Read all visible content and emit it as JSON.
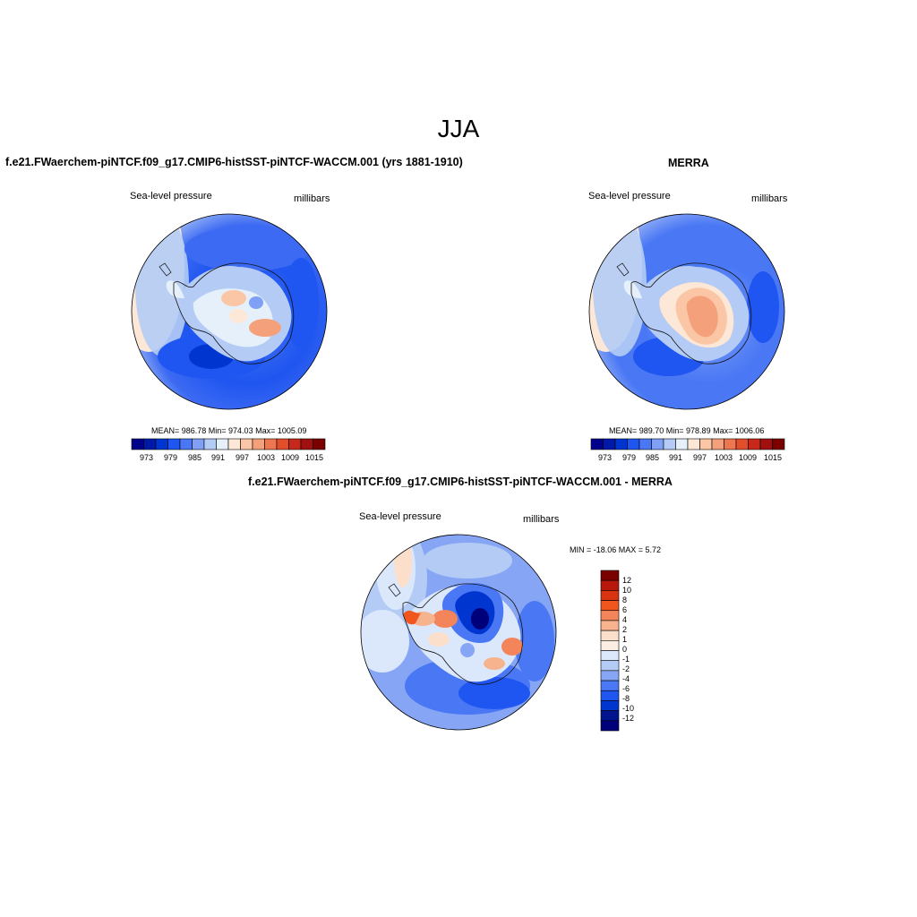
{
  "figure": {
    "season": "JJA"
  },
  "panels": [
    {
      "title": "f.e21.FWaerchem-piNTCF.f09_g17.CMIP6-histSST-piNTCF-WACCM.001 (yrs 1881-1910)",
      "left_label": "Sea-level pressure",
      "right_label": "millibars",
      "stats": "MEAN= 986.78   Min= 974.03   Max= 1005.09",
      "colorbar_labels": [
        "973",
        "979",
        "985",
        "991",
        "997",
        "1003",
        "1009",
        "1015"
      ]
    },
    {
      "title": "MERRA",
      "left_label": "Sea-level pressure",
      "right_label": "millibars",
      "stats": "MEAN= 989.70   Min= 978.89   Max= 1006.06",
      "colorbar_labels": [
        "973",
        "979",
        "985",
        "991",
        "997",
        "1003",
        "1009",
        "1015"
      ]
    },
    {
      "title": "f.e21.FWaerchem-piNTCF.f09_g17.CMIP6-histSST-piNTCF-WACCM.001 - MERRA",
      "left_label": "Sea-level pressure",
      "right_label": "millibars",
      "stats": "MIN = -18.06 MAX =   5.72",
      "colorbar_labels": [
        "12",
        "10",
        "8",
        "6",
        "4",
        "2",
        "1",
        "0",
        "-1",
        "-2",
        "-4",
        "-6",
        "-8",
        "-10",
        "-12"
      ]
    }
  ],
  "colors": {
    "abs_scale": [
      "#00008b",
      "#0019a8",
      "#0035d0",
      "#1f55f0",
      "#4a78f5",
      "#7fa0f5",
      "#b4ccf5",
      "#e6f0fb",
      "#fde7d6",
      "#fac6a6",
      "#f4a07a",
      "#ee7650",
      "#e24e2a",
      "#c8281a",
      "#a01010",
      "#7a0000"
    ],
    "diff_scale": [
      "#7a0000",
      "#b8180c",
      "#d83412",
      "#f0561e",
      "#f4855a",
      "#f7b28e",
      "#fbdfcb",
      "#fdeee3",
      "#dbe8fb",
      "#b4ccf5",
      "#86a6f5",
      "#4a78f5",
      "#1f55f0",
      "#0035d0",
      "#00138f",
      "#00007a"
    ]
  }
}
